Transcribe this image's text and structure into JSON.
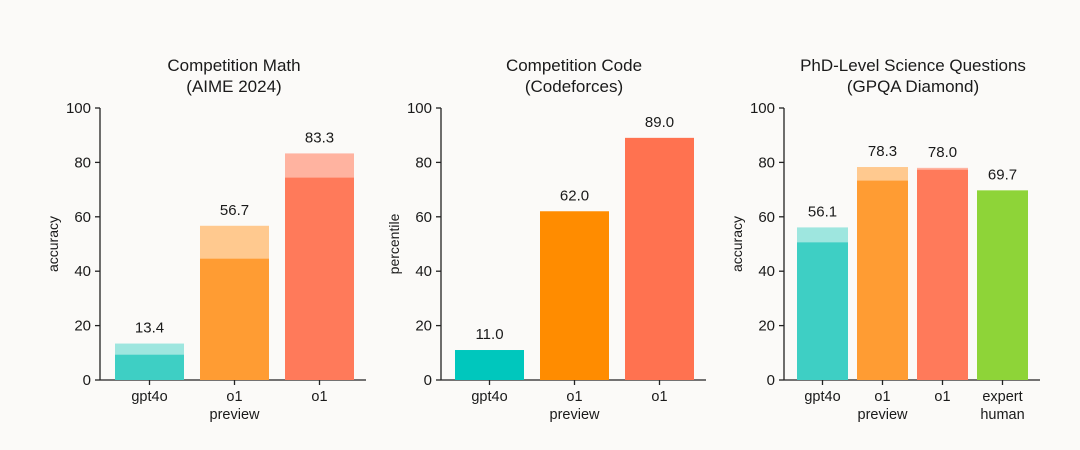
{
  "chart_data": [
    {
      "type": "bar",
      "title": "Competition Math",
      "subtitle": "(AIME 2024)",
      "ylabel": "accuracy",
      "ylim": [
        0,
        100
      ],
      "yticks": [
        "0",
        "20",
        "40",
        "60",
        "80",
        "100"
      ],
      "categories": [
        [
          "gpt4o"
        ],
        [
          "o1",
          "preview"
        ],
        [
          "o1"
        ]
      ],
      "values": [
        13.4,
        56.7,
        83.3
      ],
      "base_values": [
        9.3,
        44.6,
        74.4
      ],
      "labels": [
        "13.4",
        "56.7",
        "83.3"
      ],
      "colors": [
        "#3ecfc4",
        "#ff9c33",
        "#ff7a5a"
      ],
      "light_colors": [
        "#9ee6df",
        "#ffc98f",
        "#ffb3a0"
      ]
    },
    {
      "type": "bar",
      "title": "Competition Code",
      "subtitle": "(Codeforces)",
      "ylabel": "percentile",
      "ylim": [
        0,
        100
      ],
      "yticks": [
        "0",
        "20",
        "40",
        "60",
        "80",
        "100"
      ],
      "categories": [
        [
          "gpt4o"
        ],
        [
          "o1",
          "preview"
        ],
        [
          "o1"
        ]
      ],
      "values": [
        11.0,
        62.0,
        89.0
      ],
      "base_values": [
        11.0,
        62.0,
        89.0
      ],
      "labels": [
        "11.0",
        "62.0",
        "89.0"
      ],
      "colors": [
        "#00c7bd",
        "#ff8c00",
        "#ff7250"
      ],
      "light_colors": [
        "#00c7bd",
        "#ff8c00",
        "#ff7250"
      ]
    },
    {
      "type": "bar",
      "title": "PhD-Level Science Questions",
      "subtitle": "(GPQA Diamond)",
      "ylabel": "accuracy",
      "ylim": [
        0,
        100
      ],
      "yticks": [
        "0",
        "20",
        "40",
        "60",
        "80",
        "100"
      ],
      "categories": [
        [
          "gpt4o"
        ],
        [
          "o1",
          "preview"
        ],
        [
          "o1"
        ],
        [
          "expert",
          "human"
        ]
      ],
      "values": [
        56.1,
        78.3,
        78.0,
        69.7
      ],
      "base_values": [
        50.6,
        73.3,
        77.3,
        69.7
      ],
      "labels": [
        "56.1",
        "78.3",
        "78.0",
        "69.7"
      ],
      "colors": [
        "#3ecfc4",
        "#ff9c33",
        "#ff7a5a",
        "#8ed438"
      ],
      "light_colors": [
        "#9ee6df",
        "#ffc98f",
        "#ffb3a0",
        "#8ed438"
      ]
    }
  ]
}
